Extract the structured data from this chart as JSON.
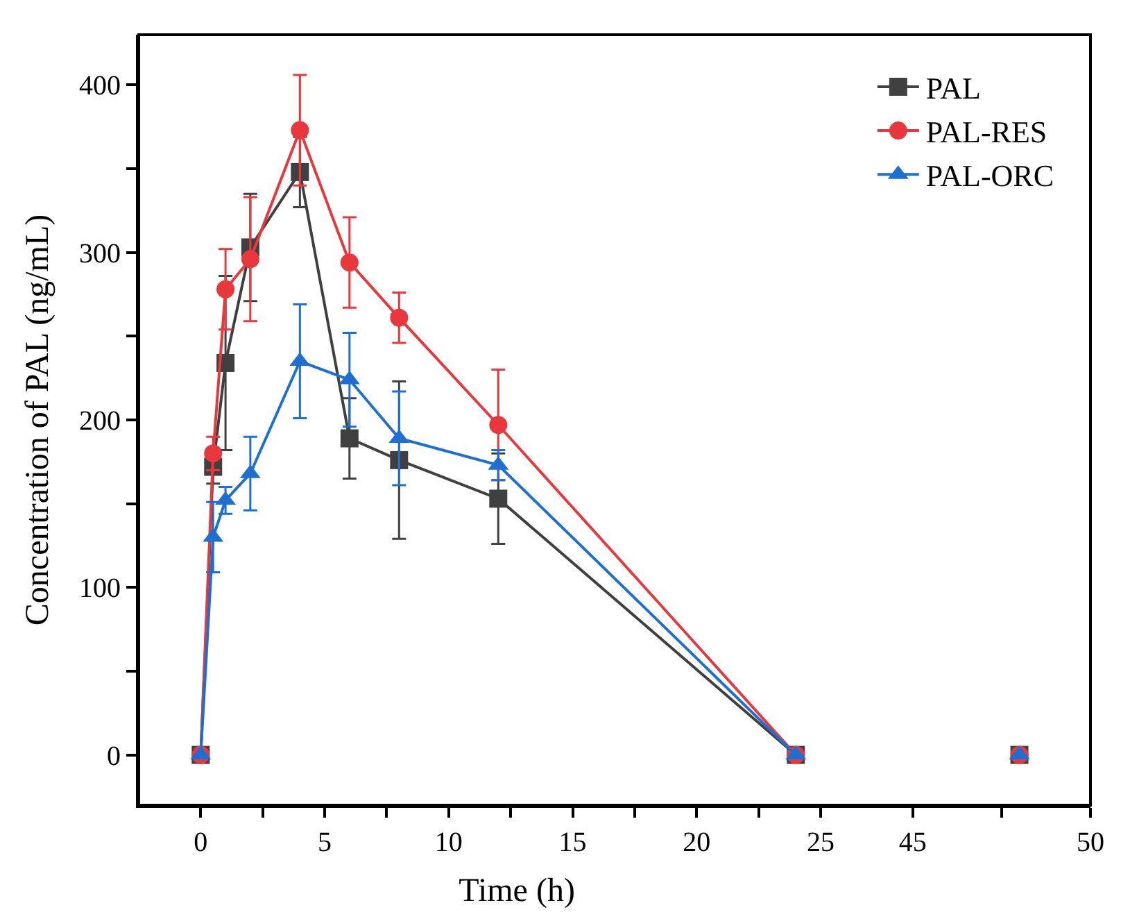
{
  "chart_data": [
    {
      "type": "line",
      "xlabel": "Time (h)",
      "ylabel": "Concentration of PAL (ng/mL)",
      "x": [
        0,
        0.5,
        1,
        2,
        4,
        6,
        8,
        12,
        24
      ],
      "series": [
        {
          "name": "PAL",
          "color": "#404040",
          "marker": "square",
          "values": [
            0,
            172,
            234,
            303,
            348,
            189,
            176,
            153,
            0
          ],
          "errors": [
            null,
            10,
            52,
            32,
            21,
            24,
            47,
            27,
            null
          ]
        },
        {
          "name": "PAL-RES",
          "color": "#e8383d",
          "marker": "circle",
          "values": [
            0,
            180,
            278,
            296,
            373,
            294,
            261,
            197,
            0
          ],
          "errors": [
            null,
            10,
            24,
            37,
            33,
            27,
            15,
            33,
            null
          ]
        },
        {
          "name": "PAL-ORC",
          "color": "#1f6fd1",
          "marker": "triangle",
          "values": [
            0,
            130,
            152,
            168,
            235,
            224,
            189,
            173,
            0
          ],
          "errors": [
            null,
            21,
            8,
            22,
            34,
            28,
            28,
            9,
            null
          ]
        }
      ],
      "xlim": [
        -2.5,
        28
      ],
      "xticks": [
        0,
        {
          "value": 2.5,
          "label": null
        },
        5,
        {
          "value": 7.5,
          "label": null
        },
        10,
        {
          "value": 12.5,
          "label": null
        },
        15,
        {
          "value": 17.5,
          "label": null
        },
        20,
        {
          "value": 22.5,
          "label": null
        },
        25
      ],
      "ylim": [
        -30,
        430
      ],
      "yticks": [
        0,
        {
          "value": 50,
          "label": null
        },
        100,
        {
          "value": 150,
          "label": null
        },
        200,
        {
          "value": 250,
          "label": null
        },
        300,
        {
          "value": 350,
          "label": null
        },
        400
      ],
      "legend": "top right",
      "line_style": "solid"
    },
    {
      "type": "line",
      "x": [
        48
      ],
      "series": [
        {
          "color": "#404040",
          "marker": "square",
          "values": [
            0
          ]
        },
        {
          "color": "#e8383d",
          "marker": "circle",
          "values": [
            0
          ]
        },
        {
          "color": "#1f6fd1",
          "marker": "triangle",
          "values": [
            0
          ]
        }
      ],
      "xlim": [
        44.5,
        50
      ],
      "xticks": [
        45,
        {
          "value": 47.5,
          "label": null
        },
        50
      ],
      "ylim": [
        -30,
        430
      ],
      "tick_labels": "x"
    }
  ]
}
